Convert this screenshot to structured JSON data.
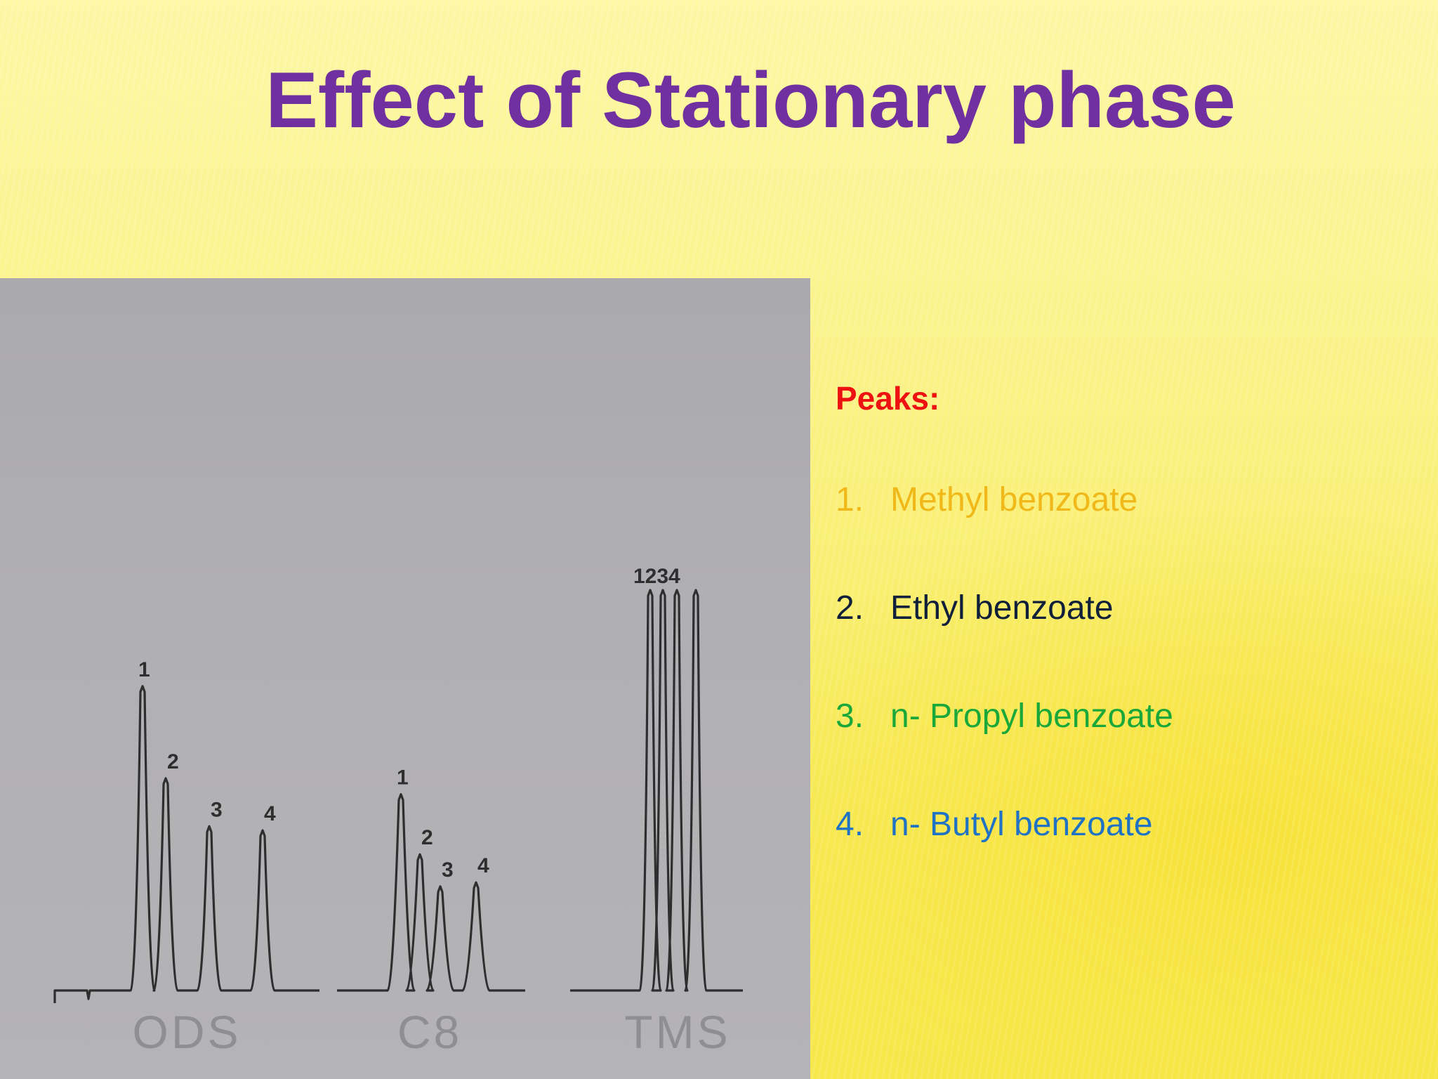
{
  "slide": {
    "title": "Effect of Stationary phase"
  },
  "legend": {
    "heading": "Peaks:",
    "items": [
      {
        "num": "1.",
        "label": "Methyl benzoate",
        "color": "#f0b818"
      },
      {
        "num": "2.",
        "label": "Ethyl benzoate",
        "color": "#10203a"
      },
      {
        "num": "3.",
        "label": "n- Propyl benzoate",
        "color": "#1aa83a"
      },
      {
        "num": "4.",
        "label": "n- Butyl benzoate",
        "color": "#1f72c4"
      }
    ]
  },
  "chart_data": {
    "type": "line",
    "description_free": true,
    "panels": [
      {
        "name": "ODS",
        "peaks": [
          {
            "label": "1",
            "height": 0.76
          },
          {
            "label": "2",
            "height": 0.53
          },
          {
            "label": "3",
            "height": 0.41
          },
          {
            "label": "4",
            "height": 0.4
          }
        ]
      },
      {
        "name": "C8",
        "peaks": [
          {
            "label": "1",
            "height": 0.49
          },
          {
            "label": "2",
            "height": 0.34
          },
          {
            "label": "3",
            "height": 0.26
          },
          {
            "label": "4",
            "height": 0.27
          }
        ]
      },
      {
        "name": "TMS",
        "peaks": [
          {
            "label": "1",
            "height": 1.0
          },
          {
            "label": "2",
            "height": 1.0
          },
          {
            "label": "3",
            "height": 1.0
          },
          {
            "label": "4",
            "height": 1.0
          }
        ],
        "top_label": "1234"
      }
    ],
    "colors": {
      "trace": "#2e2e2e",
      "axis_label": "#8f8f93",
      "background": "#b0afb3"
    }
  }
}
